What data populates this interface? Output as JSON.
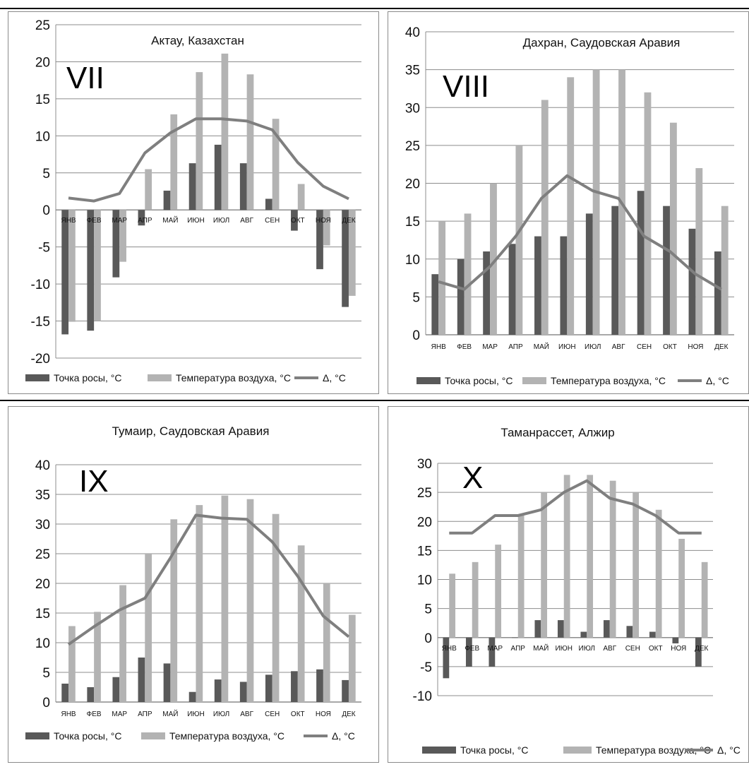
{
  "chart_data": [
    {
      "type": "bar",
      "title": "Актау, Казахстан",
      "roman": "VII",
      "categories": [
        "ЯНВ",
        "ФЕВ",
        "МАР",
        "АПР",
        "МАЙ",
        "ИЮН",
        "ИЮЛ",
        "АВГ",
        "СЕН",
        "ОКТ",
        "НОЯ",
        "ДЕК"
      ],
      "ylim": [
        -20,
        25
      ],
      "yticks": [
        -20,
        -15,
        -10,
        -5,
        0,
        5,
        10,
        15,
        20,
        25
      ],
      "series": [
        {
          "name": "Точка росы, °C",
          "type": "bar",
          "color": "#595959",
          "values": [
            -16.8,
            -16.3,
            -9.1,
            -2.1,
            2.6,
            6.3,
            8.8,
            6.3,
            1.5,
            -2.8,
            -8,
            -13.1
          ]
        },
        {
          "name": "Температура воздуха, °C",
          "type": "bar",
          "color": "#b3b3b3",
          "values": [
            -15.1,
            -15,
            -7,
            5.5,
            12.9,
            18.6,
            21.1,
            18.3,
            12.3,
            3.5,
            -4.8,
            -11.6
          ]
        },
        {
          "name": "Δ, °C",
          "type": "line",
          "color": "#7f7f7f",
          "values": [
            1.6,
            1.2,
            2.2,
            7.7,
            10.4,
            12.3,
            12.3,
            12,
            10.8,
            6.4,
            3.2,
            1.5
          ]
        }
      ],
      "grid": true,
      "legend": "bottom"
    },
    {
      "type": "bar",
      "title": "Дахран, Саудовская Аравия",
      "roman": "VIII",
      "categories": [
        "ЯНВ",
        "ФЕВ",
        "МАР",
        "АПР",
        "МАЙ",
        "ИЮН",
        "ИЮЛ",
        "АВГ",
        "СЕН",
        "ОКТ",
        "НОЯ",
        "ДЕК"
      ],
      "ylim": [
        0,
        40
      ],
      "yticks": [
        0,
        5,
        10,
        15,
        20,
        25,
        30,
        35,
        40
      ],
      "series": [
        {
          "name": "Точка росы, °C",
          "type": "bar",
          "color": "#595959",
          "values": [
            8,
            10,
            11,
            12,
            13,
            13,
            16,
            17,
            19,
            17,
            14,
            11
          ]
        },
        {
          "name": "Температура воздуха, °C",
          "type": "bar",
          "color": "#b3b3b3",
          "values": [
            15,
            16,
            20,
            25,
            31,
            34,
            35,
            35,
            32,
            28,
            22,
            17
          ]
        },
        {
          "name": "Δ, °C",
          "type": "line",
          "color": "#7f7f7f",
          "values": [
            7,
            6,
            9,
            13,
            18,
            21,
            19,
            18,
            13,
            11,
            8,
            6
          ]
        }
      ],
      "grid": true,
      "legend": "bottom"
    },
    {
      "type": "bar",
      "title": "Тумаир, Саудовская Аравия",
      "roman": "IX",
      "categories": [
        "ЯНВ",
        "ФЕВ",
        "МАР",
        "АПР",
        "МАЙ",
        "ИЮН",
        "ИЮЛ",
        "АВГ",
        "СЕН",
        "ОКТ",
        "НОЯ",
        "ДЕК"
      ],
      "ylim": [
        0,
        40
      ],
      "yticks": [
        0,
        5,
        10,
        15,
        20,
        25,
        30,
        35,
        40
      ],
      "series": [
        {
          "name": "Точка росы, °C",
          "type": "bar",
          "color": "#595959",
          "values": [
            3.1,
            2.5,
            4.2,
            7.5,
            6.5,
            1.7,
            3.8,
            3.4,
            4.6,
            5.2,
            5.5,
            3.7
          ]
        },
        {
          "name": "Температура воздуха, °C",
          "type": "bar",
          "color": "#b3b3b3",
          "values": [
            12.8,
            15.2,
            19.7,
            25,
            30.8,
            33.2,
            34.8,
            34.2,
            31.7,
            26.4,
            20,
            14.7
          ]
        },
        {
          "name": "Δ, °C",
          "type": "line",
          "color": "#7f7f7f",
          "values": [
            9.7,
            12.7,
            15.5,
            17.5,
            24.3,
            31.5,
            31,
            30.8,
            27,
            21.2,
            14.5,
            11
          ]
        }
      ],
      "grid": true,
      "legend": "bottom"
    },
    {
      "type": "bar",
      "title": "Таманрассет, Алжир",
      "roman": "X",
      "categories": [
        "ЯНВ",
        "ФЕВ",
        "МАР",
        "АПР",
        "МАЙ",
        "ИЮН",
        "ИЮЛ",
        "АВГ",
        "СЕН",
        "ОКТ",
        "НОЯ",
        "ДЕК"
      ],
      "ylim": [
        -10,
        30
      ],
      "yticks": [
        -10,
        -5,
        0,
        5,
        10,
        15,
        20,
        25,
        30
      ],
      "series": [
        {
          "name": "Точка росы, °C",
          "type": "bar",
          "color": "#595959",
          "values": [
            -7,
            -5,
            -5,
            0,
            3,
            3,
            1,
            3,
            2,
            1,
            -1,
            -5
          ]
        },
        {
          "name": "Температура воздуха, °C",
          "type": "bar",
          "color": "#b3b3b3",
          "values": [
            11,
            13,
            16,
            21,
            25,
            28,
            28,
            27,
            25,
            22,
            17,
            13
          ]
        },
        {
          "name": "Δ, °C",
          "type": "line",
          "color": "#7f7f7f",
          "values": [
            18,
            18,
            21,
            21,
            22,
            25,
            27,
            24,
            23,
            21,
            18,
            18
          ]
        }
      ],
      "grid": true,
      "legend": "bottom"
    }
  ]
}
